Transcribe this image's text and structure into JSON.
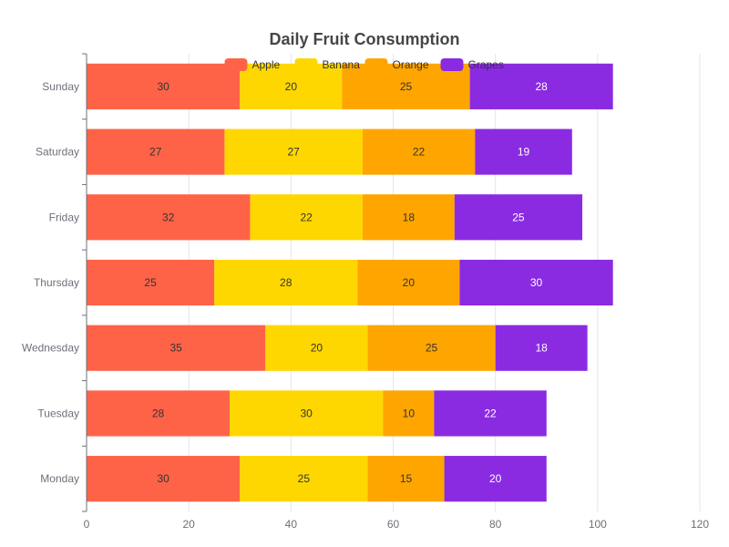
{
  "chart_data": {
    "type": "bar",
    "orientation": "horizontal",
    "stacked": true,
    "title": "Daily Fruit Consumption",
    "categories": [
      "Monday",
      "Tuesday",
      "Wednesday",
      "Thursday",
      "Friday",
      "Saturday",
      "Sunday"
    ],
    "series": [
      {
        "name": "Apple",
        "color": "#ff6347",
        "label_color": "#333333",
        "values": [
          30,
          28,
          35,
          25,
          32,
          27,
          30
        ]
      },
      {
        "name": "Banana",
        "color": "#ffd700",
        "label_color": "#333333",
        "values": [
          25,
          30,
          20,
          28,
          22,
          27,
          20
        ]
      },
      {
        "name": "Orange",
        "color": "#ffa500",
        "label_color": "#333333",
        "values": [
          15,
          10,
          25,
          20,
          18,
          22,
          25
        ]
      },
      {
        "name": "Grapes",
        "color": "#8a2be2",
        "label_color": "#ffffff",
        "values": [
          20,
          22,
          18,
          30,
          25,
          19,
          28
        ]
      }
    ],
    "xaxis": {
      "min": 0,
      "max": 120,
      "ticks": [
        0,
        20,
        40,
        60,
        80,
        100,
        120
      ]
    },
    "grid": true,
    "legend_position": "top"
  }
}
